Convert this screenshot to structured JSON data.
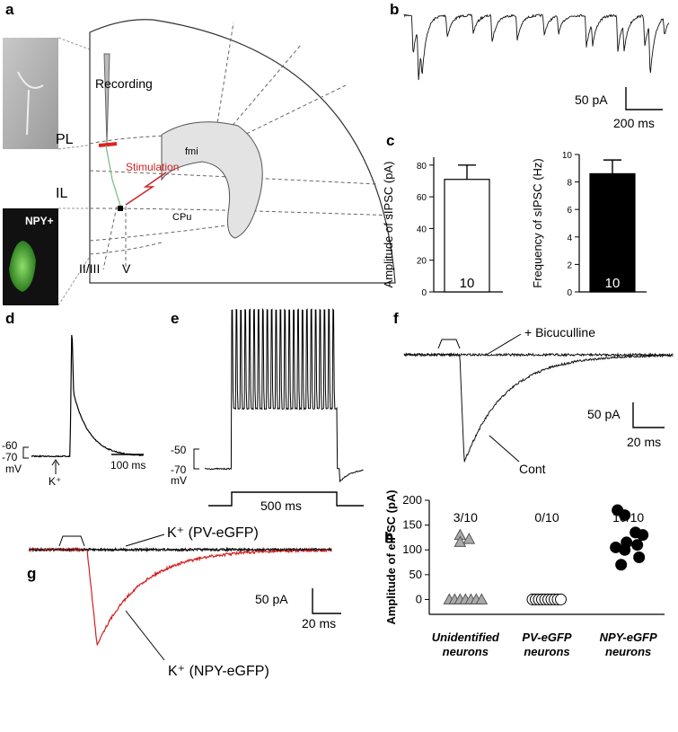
{
  "panels": {
    "a": {
      "letter": "a",
      "recording": "Recording",
      "pl": "PL",
      "il": "IL",
      "stimulation": "Stimulation",
      "fmi": "fmi",
      "cpu": "CPu",
      "npy": "NPY+",
      "layer23": "II/III",
      "layer5": "V"
    },
    "b": {
      "letter": "b",
      "scale_y": "50 pA",
      "scale_x": "200 ms"
    },
    "c": {
      "letter": "c"
    },
    "d": {
      "letter": "d",
      "v1": "-60",
      "v2": "-70",
      "unit": "mV",
      "stim": "K⁺",
      "scale_x": "100 ms"
    },
    "e": {
      "letter": "e",
      "v1": "-50",
      "v2": "-70",
      "unit": "mV",
      "step": "500 ms"
    },
    "f": {
      "letter": "f",
      "drug": "+ Bicuculline",
      "scale_y": "50 pA",
      "scale_x": "20 ms",
      "control": "Cont"
    },
    "g": {
      "letter": "g",
      "pv": "K⁺ (PV-eGFP)",
      "scale_y": "50 pA",
      "scale_x": "20 ms",
      "npy": "K⁺ (NPY-eGFP)"
    },
    "h": {
      "letter": "h"
    }
  },
  "chart_data": [
    {
      "type": "bar",
      "ylabel": "Amplitude of sIPSC (pA)",
      "values": [
        71
      ],
      "errors": [
        9
      ],
      "n_labels": [
        "10"
      ],
      "color": "#ffffff",
      "ylim": [
        0,
        85
      ],
      "yticks": [
        0,
        20,
        40,
        60,
        80
      ]
    },
    {
      "type": "bar",
      "ylabel": "Frequency of sIPSC (Hz)",
      "values": [
        8.6
      ],
      "errors": [
        1.0
      ],
      "n_labels": [
        "10"
      ],
      "color": "#000000",
      "ylim": [
        0,
        10
      ],
      "yticks": [
        0,
        2,
        4,
        6,
        8,
        10
      ]
    },
    {
      "type": "scatter",
      "ylabel": "Amplitude of eIPSC (pA)",
      "categories": [
        "Unidentified neurons",
        "PV-eGFP neurons",
        "NPY-eGFP neurons"
      ],
      "count_labels": [
        "3/10",
        "0/10",
        "10/10"
      ],
      "groups": [
        {
          "marker": "triangle",
          "color": "#aaaaaa",
          "values": [
            130,
            122,
            116,
            0,
            0,
            0,
            0,
            0,
            0,
            0
          ]
        },
        {
          "marker": "circle",
          "color": "#ffffff",
          "values": [
            0,
            0,
            0,
            0,
            0,
            0,
            0,
            0,
            0,
            0
          ]
        },
        {
          "marker": "circle",
          "color": "#000000",
          "values": [
            180,
            170,
            135,
            130,
            115,
            110,
            105,
            100,
            85,
            70
          ]
        }
      ],
      "ylim": [
        -30,
        200
      ],
      "yticks": [
        0,
        50,
        100,
        150,
        200
      ]
    }
  ]
}
